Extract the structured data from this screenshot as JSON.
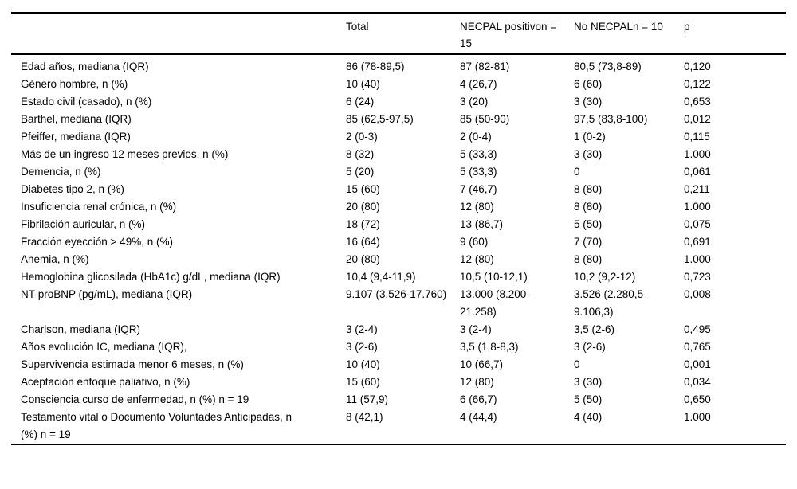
{
  "colors": {
    "background": "#ffffff",
    "text": "#000000",
    "rule": "#000000"
  },
  "table": {
    "columns": [
      "",
      "Total",
      "NECPAL positivon = 15",
      "No NECPALn = 10",
      "p"
    ],
    "rows": [
      [
        "Edad años, mediana (IQR)",
        "86 (78-89,5)",
        "87 (82-81)",
        "80,5 (73,8-89)",
        "0,120"
      ],
      [
        "Género hombre, n (%)",
        "10 (40)",
        "4 (26,7)",
        "6 (60)",
        "0,122"
      ],
      [
        "Estado civil (casado), n (%)",
        "6 (24)",
        "3 (20)",
        "3 (30)",
        "0,653"
      ],
      [
        "Barthel, mediana (IQR)",
        "85 (62,5-97,5)",
        "85 (50-90)",
        "97,5 (83,8-100)",
        "0,012"
      ],
      [
        "Pfeiffer, mediana (IQR)",
        "2 (0-3)",
        "2 (0-4)",
        "1 (0-2)",
        "0,115"
      ],
      [
        "Más de un ingreso 12 meses previos, n (%)",
        "8 (32)",
        "5 (33,3)",
        "3 (30)",
        "1.000"
      ],
      [
        "Demencia, n (%)",
        "5 (20)",
        "5 (33,3)",
        "0",
        "0,061"
      ],
      [
        "Diabetes tipo 2, n (%)",
        "15 (60)",
        "7 (46,7)",
        "8 (80)",
        "0,211"
      ],
      [
        "Insuficiencia renal crónica, n (%)",
        "20 (80)",
        "12 (80)",
        "8 (80)",
        "1.000"
      ],
      [
        "Fibrilación auricular, n (%)",
        "18 (72)",
        "13 (86,7)",
        "5 (50)",
        "0,075"
      ],
      [
        "Fracción eyección > 49%, n (%)",
        "16 (64)",
        "9 (60)",
        "7 (70)",
        "0,691"
      ],
      [
        "Anemia, n (%)",
        "20 (80)",
        "12 (80)",
        "8 (80)",
        "1.000"
      ],
      [
        "Hemoglobina glicosilada (HbA1c) g/dL, mediana (IQR)",
        "10,4 (9,4-11,9)",
        "10,5 (10-12,1)",
        "10,2 (9,2-12)",
        "0,723"
      ],
      [
        "NT-proBNP (pg/mL), mediana (IQR)",
        "9.107 (3.526-17.760)",
        "13.000 (8.200-21.258)",
        "3.526 (2.280,5-9.106,3)",
        "0,008"
      ],
      [
        "Charlson, mediana (IQR)",
        "3 (2-4)",
        "3 (2-4)",
        "3,5 (2-6)",
        "0,495"
      ],
      [
        "Años evolución IC, mediana (IQR),",
        "3 (2-6)",
        "3,5 (1,8-8,3)",
        "3 (2-6)",
        "0,765"
      ],
      [
        "Supervivencia estimada menor 6 meses, n (%)",
        "10 (40)",
        "10 (66,7)",
        "0",
        "0,001"
      ],
      [
        "Aceptación enfoque paliativo, n (%)",
        "15 (60)",
        "12 (80)",
        "3 (30)",
        "0,034"
      ],
      [
        "Consciencia curso de enfermedad, n (%) n = 19",
        "11 (57,9)",
        "6 (66,7)",
        "5 (50)",
        "0,650"
      ],
      [
        "Testamento vital o Documento Voluntades Anticipadas, n (%) n = 19",
        "8 (42,1)",
        "4 (44,4)",
        "4 (40)",
        "1.000"
      ]
    ]
  }
}
